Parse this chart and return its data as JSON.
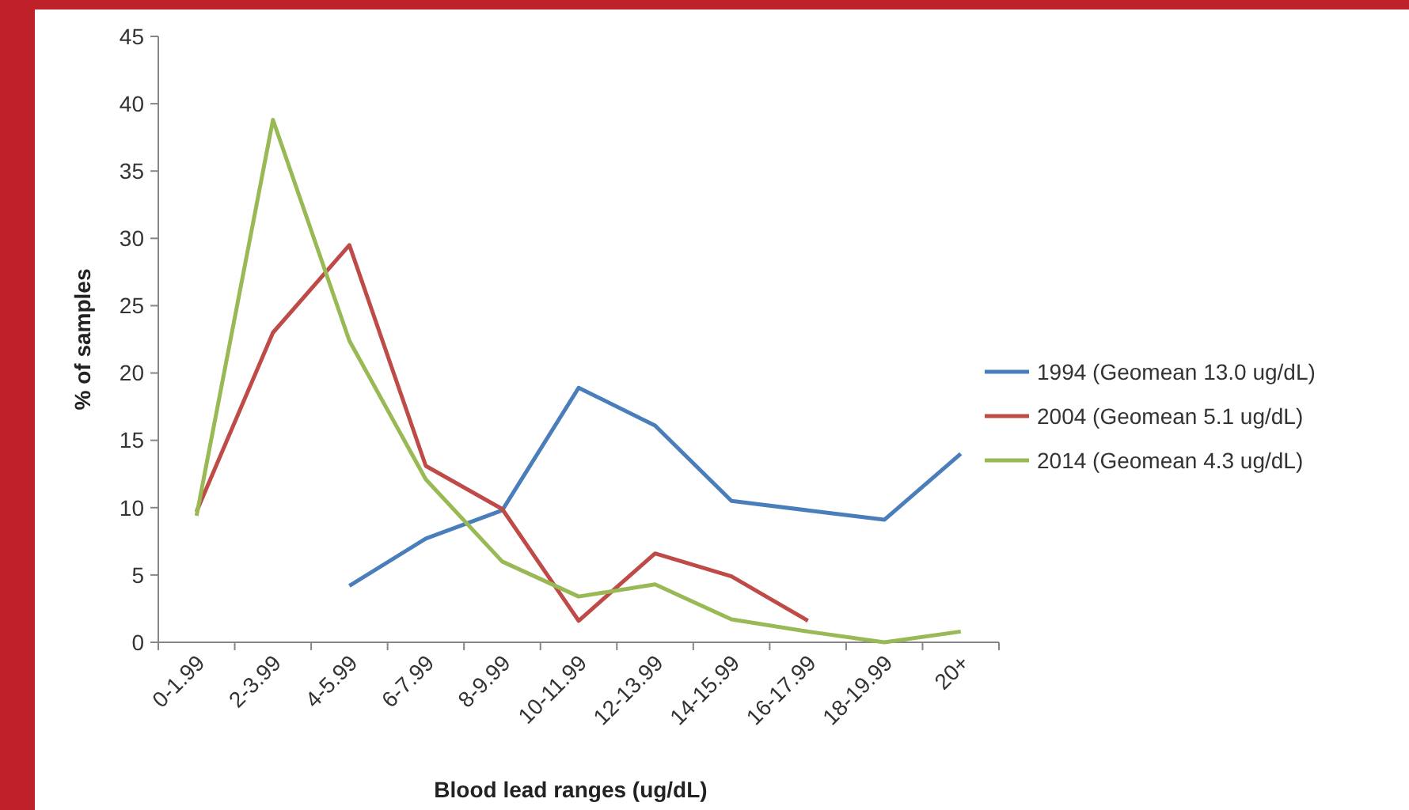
{
  "chart_data": {
    "type": "line",
    "xlabel": "Blood lead ranges (ug/dL)",
    "ylabel": "% of samples",
    "categories": [
      "0-1.99",
      "2-3.99",
      "4-5.99",
      "6-7.99",
      "8-9.99",
      "10-11.99",
      "12-13.99",
      "14-15.99",
      "16-17.99",
      "18-19.99",
      "20+"
    ],
    "series": [
      {
        "name": "1994 (Geomean 13.0 ug/dL)",
        "color": "#4a7ebb",
        "values": [
          null,
          null,
          4.2,
          7.7,
          9.8,
          18.9,
          16.1,
          10.5,
          9.8,
          9.1,
          14.0
        ]
      },
      {
        "name": "2004 (Geomean 5.1 ug/dL)",
        "color": "#be4b48",
        "values": [
          9.7,
          23,
          29.5,
          13.1,
          9.9,
          1.6,
          6.6,
          4.9,
          1.6,
          null,
          null
        ]
      },
      {
        "name": "2014 (Geomean 4.3 ug/dL)",
        "color": "#98b954",
        "values": [
          9.4,
          38.8,
          22.4,
          12.1,
          6.0,
          3.4,
          4.3,
          1.7,
          0.8,
          0.0,
          0.8
        ]
      }
    ],
    "ylim": [
      0,
      45
    ],
    "yticks": [
      0,
      5,
      10,
      15,
      20,
      25,
      30,
      35,
      40,
      45
    ],
    "grid": false,
    "legend": "right",
    "marker": "none",
    "line_style": "solid"
  }
}
